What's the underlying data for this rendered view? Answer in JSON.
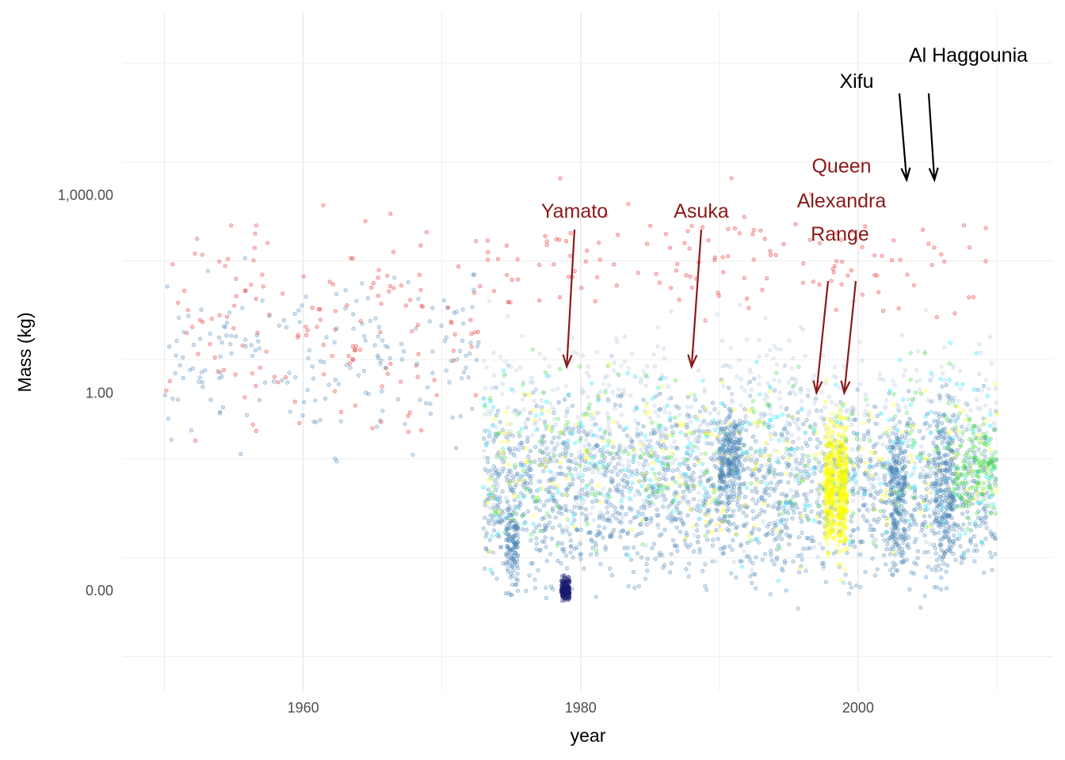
{
  "chart_data": {
    "type": "scatter",
    "title": "",
    "xlabel": "year",
    "ylabel": "Mass (kg)",
    "x_scale": "linear",
    "y_scale": "log10",
    "xlim": [
      1947,
      2014
    ],
    "ylim": [
      3e-05,
      600000
    ],
    "x_ticks": [
      1960,
      1980,
      2000
    ],
    "x_tick_labels": [
      "1960",
      "1980",
      "2000"
    ],
    "y_ticks": [
      0.001,
      1,
      1000
    ],
    "y_tick_labels": [
      "0.00",
      "1.00",
      "1,000.00"
    ],
    "grid": true,
    "legend": "none",
    "point_alpha": 0.25,
    "point_colors": [
      "#e41a1c",
      "#4682b4",
      "#1a1a6e",
      "#ffff00",
      "#00e5ff",
      "#33dd33",
      "#b0c4de"
    ],
    "clusters": [
      {
        "x": [
          1950,
          1973
        ],
        "y": [
          0.05,
          2000
        ],
        "color": "#e41a1c",
        "n": 150
      },
      {
        "x": [
          1950,
          1973
        ],
        "y": [
          0.05,
          300
        ],
        "color": "#4682b4",
        "n": 190
      },
      {
        "x": [
          1973,
          2010
        ],
        "y": [
          0.0003,
          3
        ],
        "color": "#4682b4",
        "n": 1800
      },
      {
        "x": [
          1973,
          2010
        ],
        "y": [
          0.001,
          50
        ],
        "color": "#b0c4de",
        "n": 900
      },
      {
        "x": [
          1973,
          2010
        ],
        "y": [
          0.001,
          10
        ],
        "color": "#00e5ff",
        "n": 260
      },
      {
        "x": [
          1973,
          2010
        ],
        "y": [
          0.001,
          10
        ],
        "color": "#33dd33",
        "n": 200
      },
      {
        "x": [
          1973,
          2010
        ],
        "y": [
          0.001,
          10
        ],
        "color": "#ffff00",
        "n": 240
      },
      {
        "x": [
          1973,
          2010
        ],
        "y": [
          5,
          2000
        ],
        "color": "#e41a1c",
        "n": 140
      },
      {
        "x": [
          1978.6,
          1979.2
        ],
        "y": [
          0.0006,
          0.002
        ],
        "color": "#1a1a6e",
        "n": 160
      },
      {
        "x": [
          1974.6,
          1975.5
        ],
        "y": [
          0.0005,
          0.05
        ],
        "color": "#4682b4",
        "n": 120
      },
      {
        "x": [
          1997.6,
          1998.3
        ],
        "y": [
          0.002,
          1
        ],
        "color": "#ffff00",
        "n": 260
      },
      {
        "x": [
          1998.5,
          1999.2
        ],
        "y": [
          0.001,
          1
        ],
        "color": "#ffff00",
        "n": 280
      },
      {
        "x": [
          1990,
          1991.5
        ],
        "y": [
          0.01,
          1
        ],
        "color": "#4682b4",
        "n": 220
      },
      {
        "x": [
          2002.3,
          2003.4
        ],
        "y": [
          0.0007,
          1
        ],
        "color": "#4682b4",
        "n": 200
      },
      {
        "x": [
          2005.5,
          2006.9
        ],
        "y": [
          0.0008,
          2
        ],
        "color": "#4682b4",
        "n": 200
      },
      {
        "x": [
          2007,
          2010
        ],
        "y": [
          0.005,
          1
        ],
        "color": "#33dd33",
        "n": 120
      }
    ],
    "annotations": [
      {
        "label": "Yamato",
        "x": 1979,
        "y": 2.5,
        "color": "#8b1a1a"
      },
      {
        "label": "Asuka",
        "x": 1988,
        "y": 2.5,
        "color": "#8b1a1a"
      },
      {
        "label": "Queen Alexandra Range",
        "x": 1997,
        "y": 1.0,
        "color": "#8b1a1a"
      },
      {
        "label": "Queen Alexandra Range",
        "x": 1999,
        "y": 1.0,
        "color": "#8b1a1a"
      },
      {
        "label": "Xifu",
        "x": 2003.5,
        "y": 1700,
        "color": "#000000"
      },
      {
        "label": "Al Haggounia",
        "x": 2005.5,
        "y": 1700,
        "color": "#000000"
      }
    ],
    "annotation_texts": [
      {
        "text": "Yamato",
        "color": "#8b1a1a"
      },
      {
        "text": "Asuka",
        "color": "#8b1a1a"
      },
      {
        "text": "Queen",
        "color": "#8b1a1a"
      },
      {
        "text": "Alexandra",
        "color": "#8b1a1a"
      },
      {
        "text": "Range",
        "color": "#8b1a1a"
      },
      {
        "text": "Xifu",
        "color": "#000000"
      },
      {
        "text": "Al Haggounia",
        "color": "#000000"
      }
    ]
  }
}
